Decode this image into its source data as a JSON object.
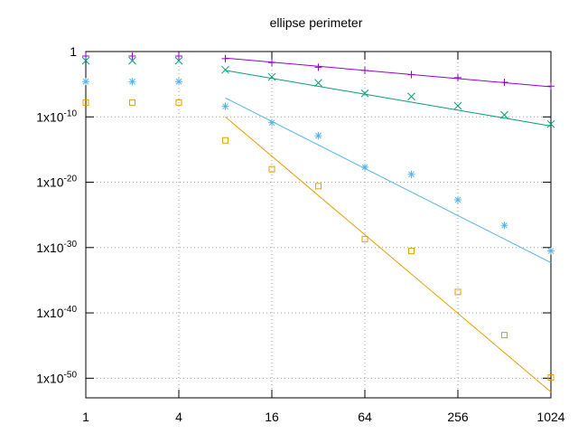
{
  "chart_data": {
    "type": "scatter",
    "title": "ellipse perimeter",
    "xscale": "log2",
    "yscale": "log10",
    "grid": true,
    "xlim": [
      1,
      1024
    ],
    "xticks": [
      1,
      4,
      16,
      64,
      256,
      1024
    ],
    "ylim": [
      1e-53,
      1
    ],
    "yticks": [
      1,
      {
        "value": 1e-10,
        "label": "1x10-10"
      },
      {
        "value": 1e-20,
        "label": "1x10-20"
      },
      {
        "value": 1e-30,
        "label": "1x10-30"
      },
      {
        "value": 1e-40,
        "label": "1x10-40"
      },
      {
        "value": 1e-50,
        "label": "1x10-50"
      }
    ],
    "x": [
      1,
      2,
      4,
      8,
      16,
      32,
      64,
      128,
      256,
      512,
      1024
    ],
    "series": [
      {
        "color": "#9400d3",
        "marker": "plus",
        "values": [
          0.2,
          0.2,
          0.2,
          0.08,
          0.02,
          0.004,
          0.0013,
          0.0003,
          0.0001,
          2e-05,
          5e-06
        ]
      },
      {
        "color": "#009e73",
        "marker": "cross",
        "values": [
          0.04,
          0.04,
          0.04,
          0.0016,
          0.00013,
          1.6e-05,
          4e-07,
          1.3e-07,
          5e-09,
          2e-10,
          8e-12
        ]
      },
      {
        "color": "#56b4e9",
        "marker": "star",
        "values": [
          2.5e-05,
          2.5e-05,
          2.5e-05,
          4e-09,
          1.3e-11,
          1.3e-13,
          2e-18,
          1.6e-19,
          2e-23,
          2.5e-27,
          3e-31
        ]
      },
      {
        "color": "#e69f00",
        "marker": "square",
        "values": [
          1.6e-08,
          1.6e-08,
          1.6e-08,
          2.5e-14,
          1e-18,
          2.5e-21,
          2e-29,
          3e-31,
          1.6e-37,
          4e-44,
          1.3e-50
        ]
      }
    ],
    "fits": [
      {
        "color": "#9400d3",
        "x": [
          8,
          1024
        ],
        "values": [
          0.1,
          4e-06
        ]
      },
      {
        "color": "#009e73",
        "x": [
          8,
          1024
        ],
        "values": [
          0.0013,
          4e-12
        ]
      },
      {
        "color": "#56b4e9",
        "x": [
          8,
          1024
        ],
        "values": [
          8e-08,
          5e-33
        ]
      },
      {
        "color": "#e69f00",
        "x": [
          8,
          1024
        ],
        "values": [
          1e-10,
          8e-53
        ]
      }
    ]
  }
}
